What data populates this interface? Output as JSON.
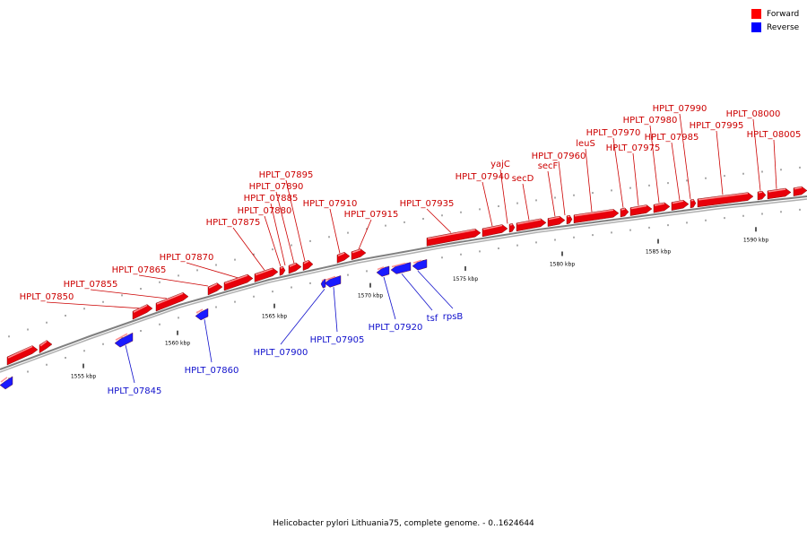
{
  "caption": "Helicobacter pylori Lithuania75, complete genome. - 0..1624644",
  "legend": {
    "forward": {
      "label": "Forward",
      "color": "#ff0000"
    },
    "reverse": {
      "label": "Reverse",
      "color": "#0000ff"
    }
  },
  "colors": {
    "forward_fill": "#e8000a",
    "forward_label": "#cc0000",
    "reverse_fill": "#1a1aff",
    "reverse_label": "#1010cc",
    "backbone": "#808080"
  },
  "scale_labels": [
    "1555 kbp",
    "1560 kbp",
    "1565 kbp",
    "1570 kbp",
    "1575 kbp",
    "1580 kbp",
    "1585 kbp",
    "1590 kbp"
  ],
  "forward_genes": [
    "HPLT_07850",
    "HPLT_07855",
    "HPLT_07865",
    "HPLT_07870",
    "HPLT_07875",
    "HPLT_07880",
    "HPLT_07885",
    "HPLT_07890",
    "HPLT_07895",
    "HPLT_07910",
    "HPLT_07915",
    "HPLT_07935",
    "HPLT_07940",
    "yajC",
    "secD",
    "secF",
    "HPLT_07960",
    "leuS",
    "HPLT_07970",
    "HPLT_07975",
    "HPLT_07980",
    "HPLT_07985",
    "HPLT_07990",
    "HPLT_07995",
    "HPLT_08000",
    "HPLT_08005"
  ],
  "reverse_genes": [
    "HPLT_07845",
    "HPLT_07860",
    "HPLT_07900",
    "HPLT_07905",
    "HPLT_07920",
    "tsf",
    "rpsB"
  ]
}
